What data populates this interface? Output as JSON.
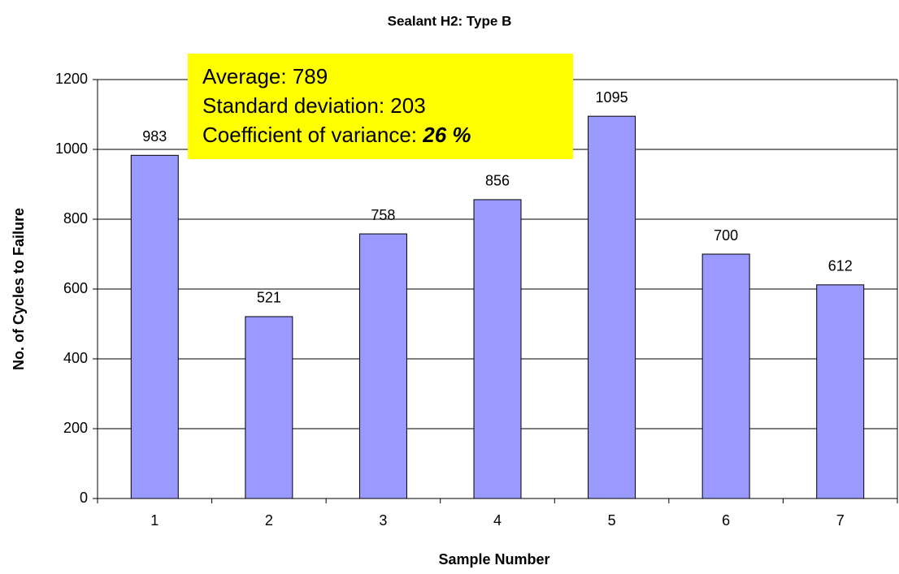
{
  "chart_data": {
    "type": "bar",
    "title": "Sealant H2: Type B",
    "x_label": "Sample Number",
    "y_label": "No. of Cycles to Failure",
    "categories": [
      "1",
      "2",
      "3",
      "4",
      "5",
      "6",
      "7"
    ],
    "values": [
      983,
      521,
      758,
      856,
      1095,
      700,
      612
    ],
    "color": "#9999ff",
    "ylim": [
      0,
      1200
    ],
    "yticks": [
      0,
      200,
      400,
      600,
      800,
      1000,
      1200
    ],
    "grid": true,
    "annotation": {
      "lines": [
        "Average: 789",
        "Standard deviation: 203"
      ],
      "cov_label": "Coefficient of variance:",
      "cov_value": "26 %"
    }
  }
}
